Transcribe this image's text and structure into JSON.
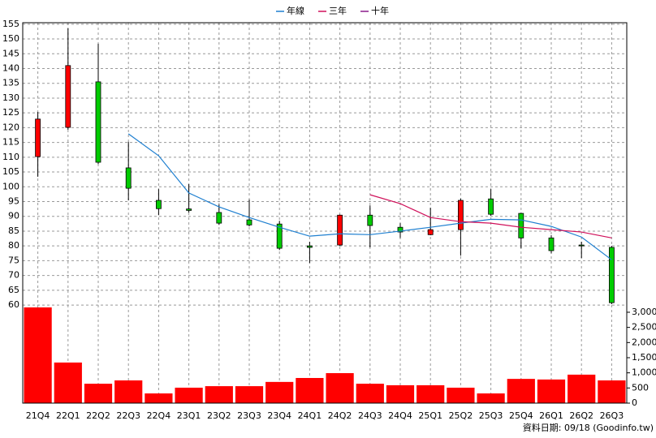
{
  "chart_data": {
    "type": "candlestick",
    "categories": [
      "21Q4",
      "22Q1",
      "22Q2",
      "22Q3",
      "22Q4",
      "23Q1",
      "23Q2",
      "23Q3",
      "23Q4",
      "24Q1",
      "24Q2",
      "24Q3",
      "24Q4",
      "25Q1",
      "25Q2",
      "25Q3",
      "25Q4",
      "26Q1",
      "26Q2",
      "26Q3"
    ],
    "open": [
      110.2,
      120.1,
      135.5,
      106.4,
      95.4,
      92.5,
      91.3,
      88.8,
      87.4,
      80.0,
      80.3,
      90.4,
      86.3,
      83.8,
      85.5,
      95.9,
      91.0,
      82.7,
      80.3,
      79.5
    ],
    "high": [
      125.3,
      153.6,
      148.4,
      115.2,
      99.2,
      100.9,
      94.0,
      95.7,
      88.5,
      81.4,
      90.6,
      93.7,
      87.7,
      92.9,
      96.0,
      99.2,
      91.2,
      83.6,
      81.4,
      80.0
    ],
    "low": [
      103.4,
      119.3,
      107.7,
      95.4,
      90.4,
      91.3,
      87.1,
      86.6,
      78.6,
      74.2,
      80.0,
      79.5,
      82.7,
      83.6,
      76.7,
      90.2,
      79.2,
      77.5,
      75.9,
      60.3
    ],
    "close": [
      122.9,
      141.0,
      108.3,
      99.5,
      92.6,
      92.0,
      87.7,
      87.1,
      79.2,
      79.5,
      90.4,
      86.9,
      84.7,
      85.5,
      95.4,
      90.7,
      82.7,
      78.4,
      80.0,
      60.8
    ],
    "up_color": "#ff0000",
    "down_color": "#00cc00",
    "lines": [
      {
        "name": "年線",
        "color": "#1e7fd0",
        "values": [
          null,
          null,
          null,
          117.9,
          110.5,
          97.9,
          93.2,
          89.6,
          86.3,
          83.3,
          84.1,
          83.8,
          85.0,
          86.3,
          87.7,
          89.0,
          88.8,
          86.6,
          83.0,
          75.3
        ]
      },
      {
        "name": "三年",
        "color": "#d0105a",
        "values": [
          null,
          null,
          null,
          null,
          null,
          null,
          null,
          null,
          null,
          null,
          null,
          97.3,
          94.3,
          89.6,
          88.2,
          87.7,
          86.3,
          85.5,
          84.7,
          82.7
        ]
      },
      {
        "name": "十年",
        "color": "#8a1a8a",
        "values": [
          null,
          null,
          null,
          null,
          null,
          null,
          null,
          null,
          null,
          null,
          null,
          null,
          null,
          null,
          null,
          null,
          null,
          null,
          null,
          null
        ]
      }
    ],
    "volume": [
      3160,
      1340,
      640,
      750,
      320,
      510,
      560,
      560,
      700,
      830,
      990,
      640,
      590,
      590,
      510,
      320,
      800,
      780,
      940,
      750
    ],
    "volume_color": "#ff0000",
    "ylim": [
      57,
      155.5
    ],
    "yticks": [
      60,
      65,
      70,
      75,
      80,
      85,
      90,
      95,
      100,
      105,
      110,
      115,
      120,
      125,
      130,
      135,
      140,
      145,
      150,
      155
    ],
    "y2lim": [
      0,
      3200
    ],
    "y2ticks": [
      0,
      500,
      {
        "value": 1000,
        "label": "1,000"
      },
      {
        "value": 1500,
        "label": "1,500"
      },
      {
        "value": 2000,
        "label": "2,000"
      },
      {
        "value": 2500,
        "label": "2,500"
      },
      {
        "value": 3000,
        "label": "3,000"
      }
    ],
    "footer": "資料日期: 09/18 (Goodinfo.tw)",
    "grid": true
  }
}
